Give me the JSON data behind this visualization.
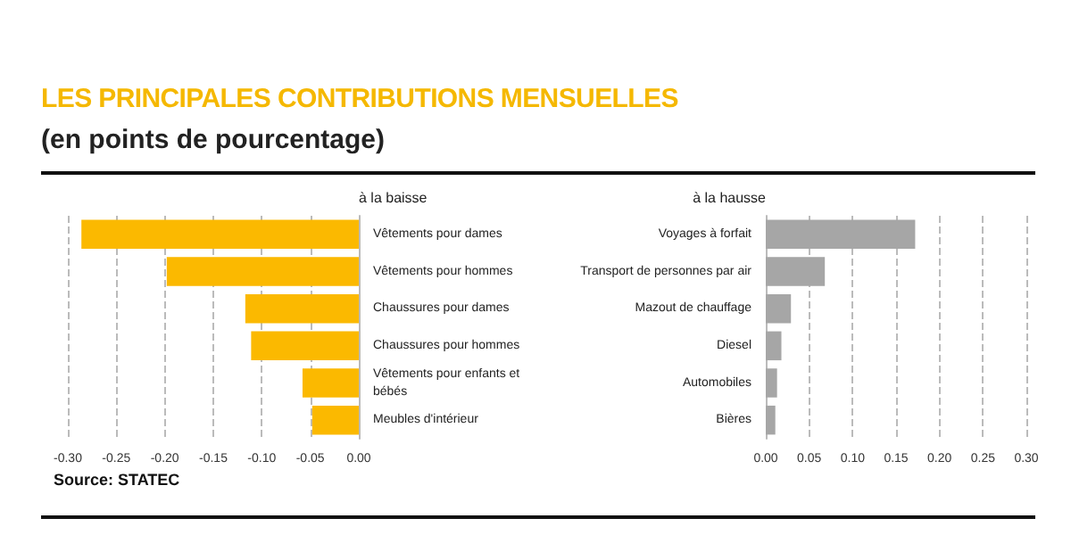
{
  "chart_data": [
    {
      "type": "bar",
      "orientation": "horizontal",
      "title": "LES PRINCIPALES CONTRIBUTIONS MENSUELLES",
      "subtitle": "(en points de pourcentage)",
      "ylabel": "à la baisse",
      "annotations": [
        "Source: STATEC"
      ],
      "categories": [
        "Vêtements pour dames",
        "Vêtements pour hommes",
        "Chaussures pour dames",
        "Chaussures pour hommes",
        "Vêtements pour enfants et bébés",
        "Meubles d'intérieur"
      ],
      "values": [
        -0.286,
        -0.198,
        -0.117,
        -0.111,
        -0.058,
        -0.048
      ],
      "color": "#fbb900",
      "xlim": [
        -0.3,
        0
      ],
      "xticks": [
        {
          "value": -0.3,
          "label": "-0.30"
        },
        {
          "value": -0.25,
          "label": "-0.25"
        },
        {
          "value": -0.2,
          "label": "-0.20"
        },
        {
          "value": -0.15,
          "label": "-0.15"
        },
        {
          "value": -0.1,
          "label": "-0.10"
        },
        {
          "value": -0.05,
          "label": "-0.05"
        },
        {
          "value": 0,
          "label": "0.00"
        }
      ],
      "grid": "x"
    },
    {
      "type": "bar",
      "orientation": "horizontal",
      "ylabel": "à la hausse",
      "categories": [
        "Voyages à forfait",
        "Transport de personnes par air",
        "Mazout de chauffage",
        "Diesel",
        "Automobiles",
        "Bières"
      ],
      "values": [
        0.172,
        0.068,
        0.029,
        0.018,
        0.013,
        0.011
      ],
      "color": "#a6a6a6",
      "xlim": [
        0,
        0.3
      ],
      "xticks": [
        {
          "value": 0,
          "label": "0.00"
        },
        {
          "value": 0.05,
          "label": "0.05"
        },
        {
          "value": 0.1,
          "label": "0.10"
        },
        {
          "value": 0.15,
          "label": "0.15"
        },
        {
          "value": 0.2,
          "label": "0.20"
        },
        {
          "value": 0.25,
          "label": "0.25"
        },
        {
          "value": 0.3,
          "label": "0.30"
        }
      ],
      "grid": "x"
    }
  ]
}
